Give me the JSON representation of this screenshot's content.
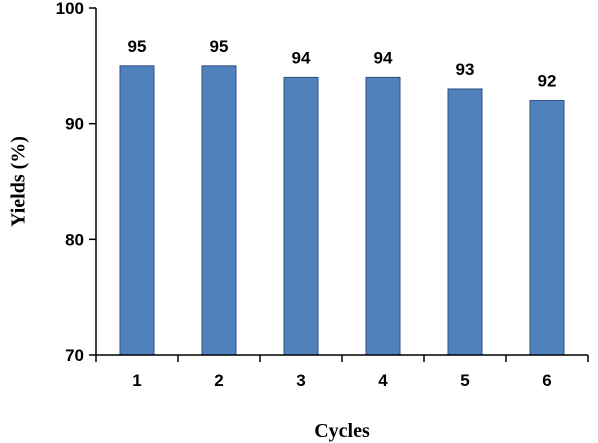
{
  "chart_data": {
    "type": "bar",
    "categories": [
      "1",
      "2",
      "3",
      "4",
      "5",
      "6"
    ],
    "values": [
      95,
      95,
      94,
      94,
      93,
      92
    ],
    "data_labels": [
      "95",
      "95",
      "94",
      "94",
      "93",
      "92"
    ],
    "title": "",
    "xlabel": "Cycles",
    "ylabel": "Yields (%)",
    "ylim": [
      70,
      100
    ],
    "yticks": [
      70,
      80,
      90,
      100
    ],
    "grid": false,
    "legend": "none",
    "bar_color": "#4f81bd",
    "bar_edge_color": "#2f4f7f"
  }
}
